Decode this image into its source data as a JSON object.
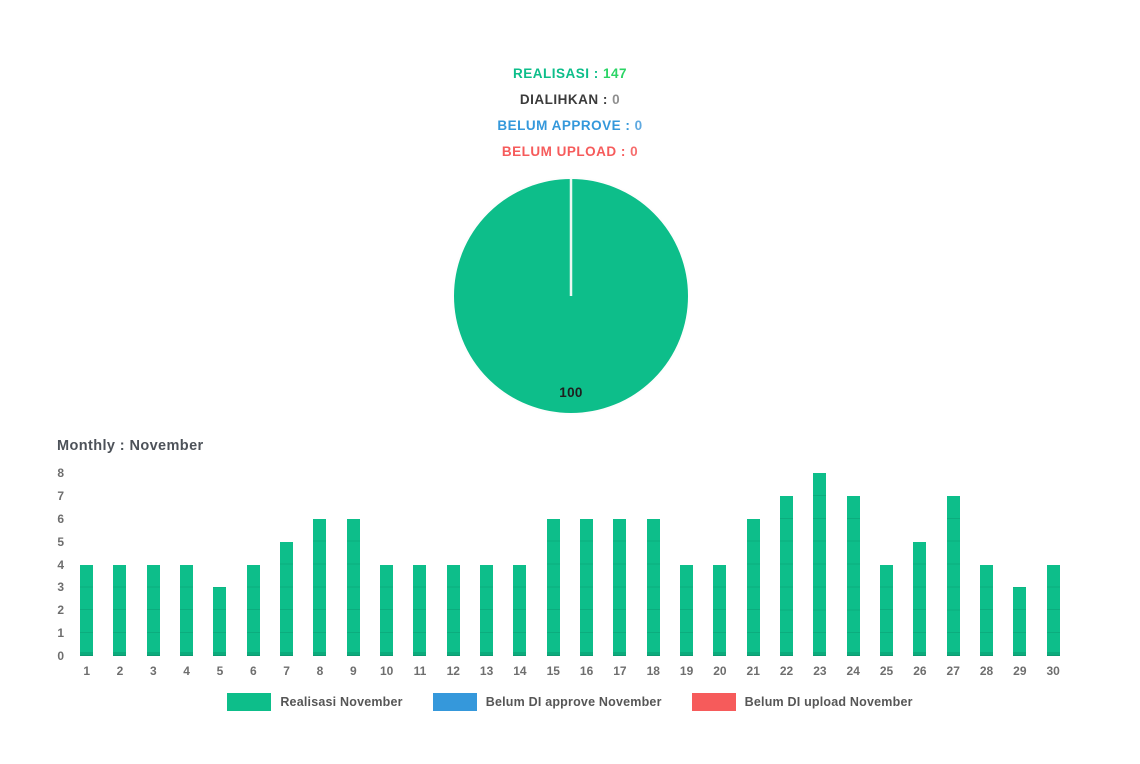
{
  "header": {
    "separator": " : ",
    "stats": [
      {
        "label": "REALISASI",
        "value": "147",
        "label_color": "#0dbe8a",
        "value_color": "#2bd465"
      },
      {
        "label": "DIALIHKAN",
        "value": "0",
        "label_color": "#3b3b3b",
        "value_color": "#8f8f8f"
      },
      {
        "label": "BELUM APPROVE",
        "value": "0",
        "label_color": "#3498db",
        "value_color": "#5fa9e0"
      },
      {
        "label": "BELUM UPLOAD",
        "value": "0",
        "label_color": "#f65b5b",
        "value_color": "#f66d6d"
      }
    ]
  },
  "chart_data": [
    {
      "type": "pie",
      "title": "",
      "slices": [
        {
          "name": "Realisasi November",
          "value": 100,
          "color": "#0dbe8a"
        }
      ],
      "data_label": "100",
      "divider_color": "#e9f9f3",
      "outline_color": "#fdfdfd",
      "legend_position": "none"
    },
    {
      "type": "bar",
      "title": "Monthly : November",
      "categories": [
        "1",
        "2",
        "3",
        "4",
        "5",
        "6",
        "7",
        "8",
        "9",
        "10",
        "11",
        "12",
        "13",
        "14",
        "15",
        "16",
        "17",
        "18",
        "19",
        "20",
        "21",
        "22",
        "23",
        "24",
        "25",
        "26",
        "27",
        "28",
        "29",
        "30"
      ],
      "series": [
        {
          "name": "Realisasi November",
          "color": "#0dbe8a",
          "values": [
            4,
            4,
            4,
            4,
            3,
            4,
            5,
            6,
            6,
            4,
            4,
            4,
            4,
            4,
            6,
            6,
            6,
            6,
            4,
            4,
            6,
            7,
            8,
            7,
            4,
            5,
            7,
            4,
            3,
            4
          ]
        }
      ],
      "xlabel": "",
      "ylabel": "",
      "ylim": [
        0,
        8
      ],
      "ytick_step": 1,
      "grid": false,
      "legend_position": "bottom"
    }
  ],
  "legend": {
    "items": [
      {
        "label": "Realisasi November",
        "color": "#0dbe8a"
      },
      {
        "label": "Belum DI approve November",
        "color": "#3598db"
      },
      {
        "label": "Belum DI upload November",
        "color": "#f65b5b"
      }
    ]
  }
}
